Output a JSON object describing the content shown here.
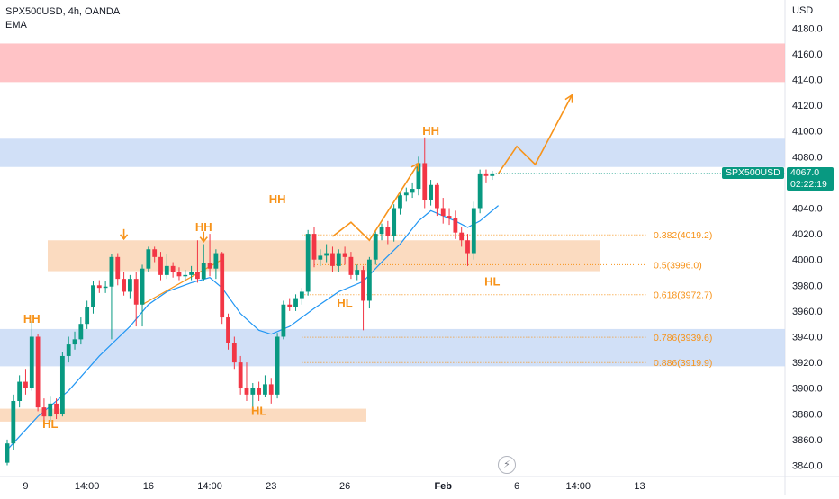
{
  "header": {
    "symbol_line": "SPX500USD, 4h, OANDA",
    "indicator": "EMA"
  },
  "price_axis": {
    "currency": "USD"
  },
  "last_price": {
    "label": "SPX500USD",
    "value": "4067.0",
    "countdown": "02:22:19"
  },
  "colors": {
    "up": "#089981",
    "down": "#f23645",
    "ema": "#2196f3",
    "projection": "#f7931a",
    "supply_zone": "#ffb8bc",
    "blue_zone": "#c9dbf6",
    "orange_zone": "#fad5b5"
  },
  "icons": [
    "flash-icon"
  ],
  "chart_data": {
    "type": "candlestick",
    "ylim": [
      3832,
      4200
    ],
    "yticks": [
      4180,
      4160,
      4140,
      4120,
      4100,
      4080,
      4060,
      4040,
      4020,
      4000,
      3980,
      3960,
      3940,
      3920,
      3900,
      3880,
      3860,
      3840
    ],
    "xticks": [
      {
        "label": "9",
        "idx": 3
      },
      {
        "label": "14:00",
        "idx": 13
      },
      {
        "label": "16",
        "idx": 23
      },
      {
        "label": "14:00",
        "idx": 33
      },
      {
        "label": "23",
        "idx": 43
      },
      {
        "label": "26",
        "idx": 55
      },
      {
        "label": "Feb",
        "idx": 71
      },
      {
        "label": "6",
        "idx": 83
      },
      {
        "label": "14:00",
        "idx": 93
      },
      {
        "label": "13",
        "idx": 103
      }
    ],
    "candles": [
      [
        3842,
        3857,
        3840,
        3860
      ],
      [
        3857,
        3890,
        3852,
        3895
      ],
      [
        3890,
        3905,
        3885,
        3910
      ],
      [
        3905,
        3900,
        3895,
        3915
      ],
      [
        3900,
        3940,
        3898,
        3952
      ],
      [
        3940,
        3885,
        3882,
        3942
      ],
      [
        3885,
        3878,
        3874,
        3892
      ],
      [
        3878,
        3888,
        3874,
        3894
      ],
      [
        3888,
        3880,
        3876,
        3892
      ],
      [
        3880,
        3925,
        3878,
        3928
      ],
      [
        3925,
        3934,
        3920,
        3940
      ],
      [
        3934,
        3938,
        3930,
        3944
      ],
      [
        3938,
        3950,
        3934,
        3955
      ],
      [
        3950,
        3963,
        3946,
        3968
      ],
      [
        3963,
        3980,
        3958,
        3983
      ],
      [
        3980,
        3978,
        3974,
        3984
      ],
      [
        3978,
        3979,
        3974,
        3983
      ],
      [
        3979,
        4002,
        3938,
        4004
      ],
      [
        4002,
        3985,
        3980,
        4005
      ],
      [
        3985,
        3975,
        3972,
        3990
      ],
      [
        3975,
        3985,
        3970,
        3988
      ],
      [
        3985,
        3965,
        3948,
        3990
      ],
      [
        3965,
        3993,
        3948,
        3996
      ],
      [
        3993,
        4008,
        3990,
        4010
      ],
      [
        4008,
        4002,
        3998,
        4010
      ],
      [
        4002,
        3988,
        3984,
        4006
      ],
      [
        3988,
        3995,
        3985,
        4004
      ],
      [
        3995,
        3990,
        3986,
        3998
      ],
      [
        3990,
        3987,
        3984,
        3994
      ],
      [
        3987,
        3988,
        3984,
        3992
      ],
      [
        3988,
        3990,
        3984,
        3995
      ],
      [
        3990,
        3985,
        3982,
        4015
      ],
      [
        3985,
        3997,
        3983,
        4012
      ],
      [
        3997,
        3993,
        3987,
        4020
      ],
      [
        3993,
        4005,
        3985,
        4008
      ],
      [
        4005,
        3955,
        3950,
        4006
      ],
      [
        3955,
        3935,
        3930,
        3958
      ],
      [
        3935,
        3920,
        3915,
        3940
      ],
      [
        3920,
        3900,
        3895,
        3925
      ],
      [
        3900,
        3895,
        3890,
        3920
      ],
      [
        3895,
        3900,
        3882,
        3904
      ],
      [
        3900,
        3895,
        3890,
        3905
      ],
      [
        3895,
        3903,
        3893,
        3910
      ],
      [
        3903,
        3895,
        3888,
        3908
      ],
      [
        3895,
        3940,
        3892,
        3943
      ],
      [
        3940,
        3965,
        3938,
        3968
      ],
      [
        3965,
        3963,
        3960,
        3970
      ],
      [
        3963,
        3970,
        3960,
        3973
      ],
      [
        3970,
        3975,
        3965,
        3978
      ],
      [
        3975,
        4020,
        3972,
        4023
      ],
      [
        4020,
        4000,
        3994,
        4025
      ],
      [
        4000,
        4003,
        3995,
        4008
      ],
      [
        4003,
        4005,
        3998,
        4012
      ],
      [
        4005,
        3995,
        3990,
        4010
      ],
      [
        3995,
        4005,
        3990,
        4008
      ],
      [
        4005,
        4002,
        3996,
        4010
      ],
      [
        4002,
        3988,
        3985,
        4006
      ],
      [
        3988,
        3992,
        3984,
        3996
      ],
      [
        3992,
        3968,
        3945,
        3995
      ],
      [
        3968,
        4000,
        3962,
        4002
      ],
      [
        4000,
        4020,
        3996,
        4023
      ],
      [
        4020,
        4025,
        4015,
        4028
      ],
      [
        4025,
        4018,
        4012,
        4030
      ],
      [
        4018,
        4040,
        4014,
        4043
      ],
      [
        4040,
        4050,
        4035,
        4053
      ],
      [
        4050,
        4052,
        4045,
        4056
      ],
      [
        4052,
        4055,
        4048,
        4060
      ],
      [
        4055,
        4075,
        4050,
        4080
      ],
      [
        4075,
        4046,
        4040,
        4095
      ],
      [
        4046,
        4058,
        4042,
        4062
      ],
      [
        4058,
        4040,
        4034,
        4060
      ],
      [
        4040,
        4034,
        4028,
        4048
      ],
      [
        4034,
        4032,
        4027,
        4040
      ],
      [
        4032,
        4021,
        4016,
        4038
      ],
      [
        4021,
        4015,
        4010,
        4025
      ],
      [
        4015,
        4005,
        3995,
        4020
      ],
      [
        4005,
        4040,
        4000,
        4045
      ],
      [
        4040,
        4067,
        4036,
        4070
      ],
      [
        4067,
        4065,
        4060,
        4070
      ],
      [
        4065,
        4067,
        4062,
        4069
      ]
    ],
    "ema": [
      [
        0,
        3852
      ],
      [
        5,
        3878
      ],
      [
        10,
        3898
      ],
      [
        15,
        3925
      ],
      [
        20,
        3948
      ],
      [
        23,
        3965
      ],
      [
        26,
        3975
      ],
      [
        30,
        3982
      ],
      [
        33,
        3986
      ],
      [
        35,
        3978
      ],
      [
        38,
        3958
      ],
      [
        41,
        3945
      ],
      [
        43,
        3942
      ],
      [
        46,
        3948
      ],
      [
        50,
        3962
      ],
      [
        54,
        3975
      ],
      [
        58,
        3983
      ],
      [
        61,
        3998
      ],
      [
        64,
        4012
      ],
      [
        67,
        4030
      ],
      [
        69,
        4038
      ],
      [
        71,
        4034
      ],
      [
        73,
        4030
      ],
      [
        75,
        4025
      ],
      [
        77,
        4030
      ],
      [
        80,
        4042
      ]
    ],
    "zones": [
      {
        "type": "supply",
        "low": 4138,
        "high": 4168,
        "x0": 0,
        "x1": 1
      },
      {
        "type": "resistance",
        "low": 4072,
        "high": 4094,
        "x0": 0,
        "x1": 1
      },
      {
        "type": "support",
        "low": 3917,
        "high": 3946,
        "x0": 0,
        "x1": 1
      },
      {
        "type": "demand",
        "low": 3991,
        "high": 4015,
        "i0": 19,
        "i1": 80
      },
      {
        "type": "demand",
        "low": 3874,
        "high": 3884,
        "i0": 0,
        "i1": 62
      }
    ],
    "fib_levels": [
      {
        "label": "0.382(4019.2)",
        "price": 4019.2,
        "i0": 48
      },
      {
        "label": "0.5(3996.0)",
        "price": 3996.0,
        "i0": 50
      },
      {
        "label": "0.618(3972.7)",
        "price": 3972.7,
        "i0": 48
      },
      {
        "label": "0.786(3939.6)",
        "price": 3939.6,
        "i0": 48
      },
      {
        "label": "0.886(3919.9)",
        "price": 3919.9,
        "i0": 48
      }
    ],
    "annotations": [
      {
        "text": "HH",
        "idx": 4,
        "price": 3951
      },
      {
        "text": "HL",
        "idx": 7,
        "price": 3869
      },
      {
        "text": "HH",
        "idx": 32,
        "price": 4022
      },
      {
        "text": "HH",
        "idx": 44,
        "price": 4044
      },
      {
        "text": "HL",
        "idx": 41,
        "price": 3879
      },
      {
        "text": "HL",
        "idx": 55,
        "price": 3963
      },
      {
        "text": "HH",
        "idx": 69,
        "price": 4097
      },
      {
        "text": "HL",
        "idx": 79,
        "price": 3980
      }
    ],
    "markers": [
      {
        "type": "down-arrow",
        "idx": 19,
        "price": 4016
      },
      {
        "type": "down-arrow",
        "idx": 32,
        "price": 4014
      }
    ],
    "trendline": [
      [
        22,
        3965
      ],
      [
        35,
        4000
      ]
    ],
    "projection_paths": [
      [
        [
          53,
          4018
        ],
        [
          56,
          4029
        ],
        [
          59,
          4015
        ],
        [
          67,
          4075
        ]
      ],
      [
        [
          80,
          4067
        ],
        [
          83,
          4088
        ],
        [
          86,
          4074
        ],
        [
          92,
          4128
        ]
      ]
    ]
  }
}
